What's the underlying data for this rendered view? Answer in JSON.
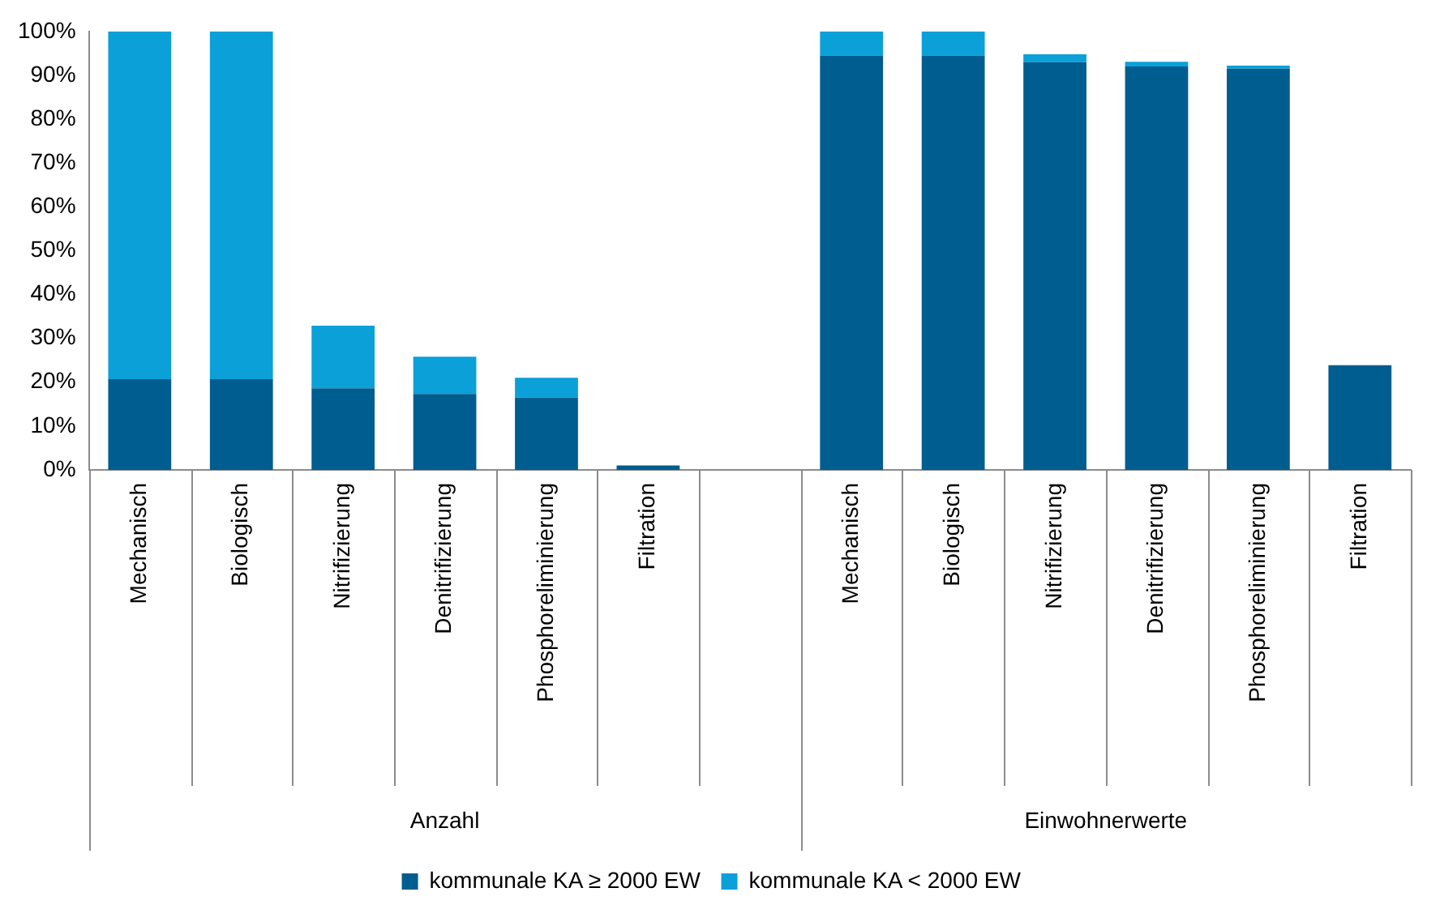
{
  "chart_data": {
    "type": "bar",
    "stacked": true,
    "categories": [
      "Mechanisch",
      "Biologisch",
      "Nitrifizierung",
      "Denitrifizierung",
      "Phosphoreliminierung",
      "Filtration",
      null,
      "Mechanisch",
      "Biologisch",
      "Nitrifizierung",
      "Denitrifizierung",
      "Phosphoreliminierung",
      "Filtration"
    ],
    "series": [
      {
        "name": "kommunale KA ≥ 2000 EW",
        "color": "#005d8f",
        "values": [
          20.7,
          20.7,
          18.6,
          17.3,
          16.5,
          1.0,
          null,
          94.5,
          94.5,
          93.0,
          92.0,
          91.5,
          23.9
        ]
      },
      {
        "name": "kommunale KA < 2000 EW",
        "color": "#0ba0d8",
        "values": [
          79.3,
          79.3,
          14.3,
          8.5,
          4.5,
          0,
          null,
          5.5,
          5.5,
          1.8,
          1.1,
          0.7,
          0
        ]
      }
    ],
    "ylim": [
      0,
      100
    ],
    "yticks": [
      {
        "value": 0,
        "label": "0%"
      },
      {
        "value": 10,
        "label": "10%"
      },
      {
        "value": 20,
        "label": "20%"
      },
      {
        "value": 30,
        "label": "30%"
      },
      {
        "value": 40,
        "label": "40%"
      },
      {
        "value": 50,
        "label": "50%"
      },
      {
        "value": 60,
        "label": "60%"
      },
      {
        "value": 70,
        "label": "70%"
      },
      {
        "value": 80,
        "label": "80%"
      },
      {
        "value": 90,
        "label": "90%"
      },
      {
        "value": 100,
        "label": "100%"
      }
    ],
    "annotations": [
      "Anzahl",
      "Einwohnerwerte"
    ],
    "grid": false,
    "legend": "bottom"
  }
}
